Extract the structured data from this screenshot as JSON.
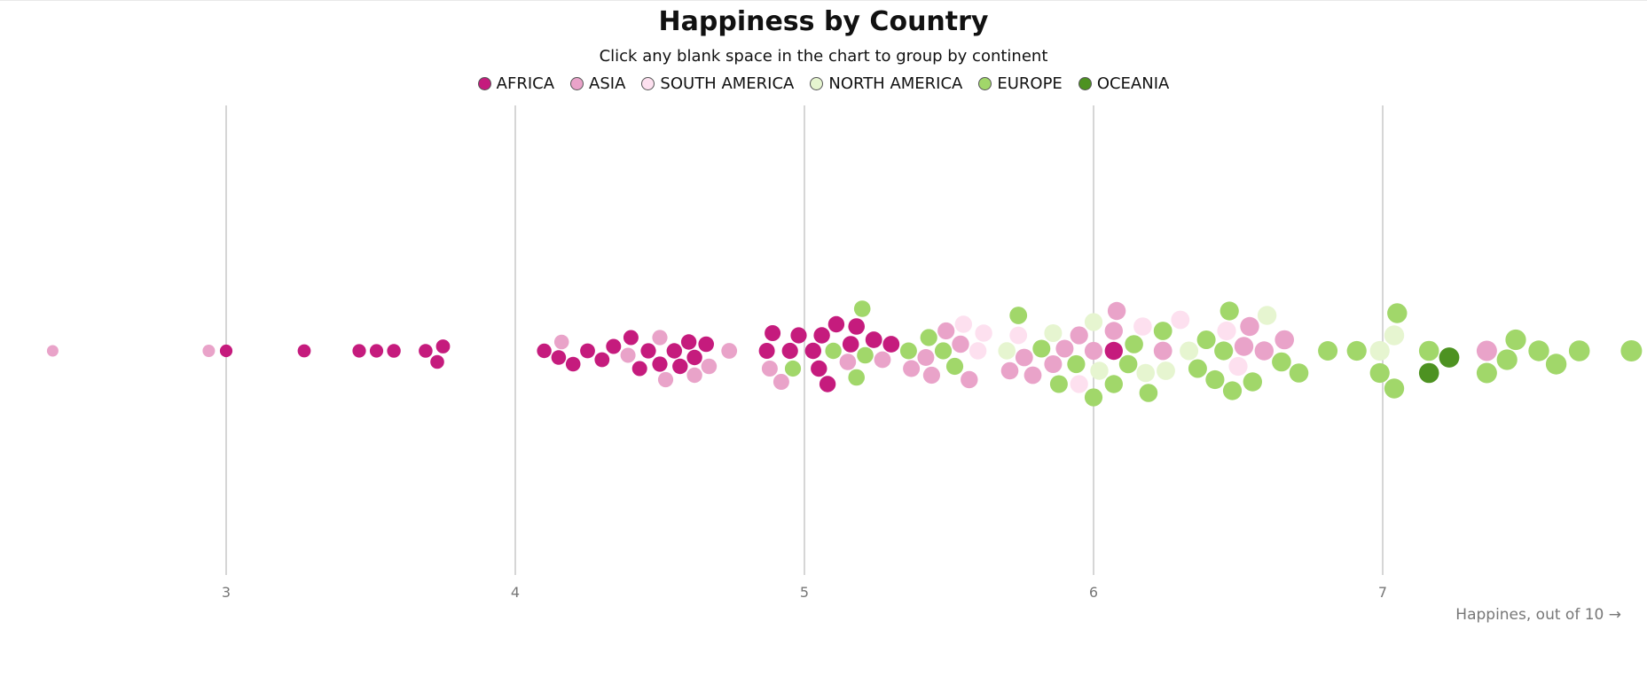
{
  "chart_data": {
    "type": "scatter",
    "title": "Happiness by Country",
    "subtitle": "Click any blank space in the chart to group by continent",
    "xlabel": "Happines, out of 10 →",
    "xlim": [
      2.4,
      7.85
    ],
    "xticks": [
      3,
      4,
      5,
      6,
      7
    ],
    "grid": true,
    "legend_position": "top-center",
    "series": [
      {
        "name": "AFRICA",
        "color": "#c51b7d",
        "x": [
          3.0,
          3.27,
          3.46,
          3.52,
          3.58,
          3.69,
          3.73,
          3.75,
          4.1,
          4.15,
          4.2,
          4.25,
          4.3,
          4.34,
          4.4,
          4.43,
          4.46,
          4.5,
          4.55,
          4.57,
          4.6,
          4.62,
          4.66,
          4.87,
          4.89,
          4.95,
          4.98,
          5.03,
          5.05,
          5.06,
          5.08,
          5.11,
          5.16,
          5.18,
          5.24,
          5.3,
          6.07
        ]
      },
      {
        "name": "ASIA",
        "color": "#e9a3c9",
        "x": [
          2.4,
          2.94,
          4.16,
          4.39,
          4.5,
          4.52,
          4.62,
          4.67,
          4.74,
          4.88,
          4.92,
          5.15,
          5.27,
          5.37,
          5.42,
          5.44,
          5.49,
          5.54,
          5.57,
          5.71,
          5.76,
          5.79,
          5.86,
          5.9,
          5.95,
          6.0,
          6.07,
          6.08,
          6.24,
          6.52,
          6.54,
          6.59,
          6.66,
          7.36
        ]
      },
      {
        "name": "SOUTH AMERICA",
        "color": "#fde0ef",
        "x": [
          5.55,
          5.6,
          5.62,
          5.74,
          5.95,
          6.17,
          6.3,
          6.46,
          6.5
        ]
      },
      {
        "name": "NORTH AMERICA",
        "color": "#e6f5d0",
        "x": [
          5.7,
          5.86,
          6.0,
          6.02,
          6.18,
          6.25,
          6.33,
          6.6,
          6.99,
          7.04
        ]
      },
      {
        "name": "EUROPE",
        "color": "#a1d76a",
        "x": [
          4.96,
          5.1,
          5.18,
          5.2,
          5.21,
          5.36,
          5.43,
          5.48,
          5.52,
          5.74,
          5.82,
          5.88,
          5.94,
          6.0,
          6.07,
          6.12,
          6.14,
          6.19,
          6.24,
          6.36,
          6.39,
          6.42,
          6.45,
          6.47,
          6.48,
          6.55,
          6.65,
          6.71,
          6.81,
          6.91,
          6.99,
          7.04,
          7.05,
          7.16,
          7.36,
          7.43,
          7.46,
          7.54,
          7.6,
          7.68,
          7.86
        ]
      },
      {
        "name": "OCEANIA",
        "color": "#4d9221",
        "x": [
          7.16,
          7.23
        ]
      }
    ]
  }
}
